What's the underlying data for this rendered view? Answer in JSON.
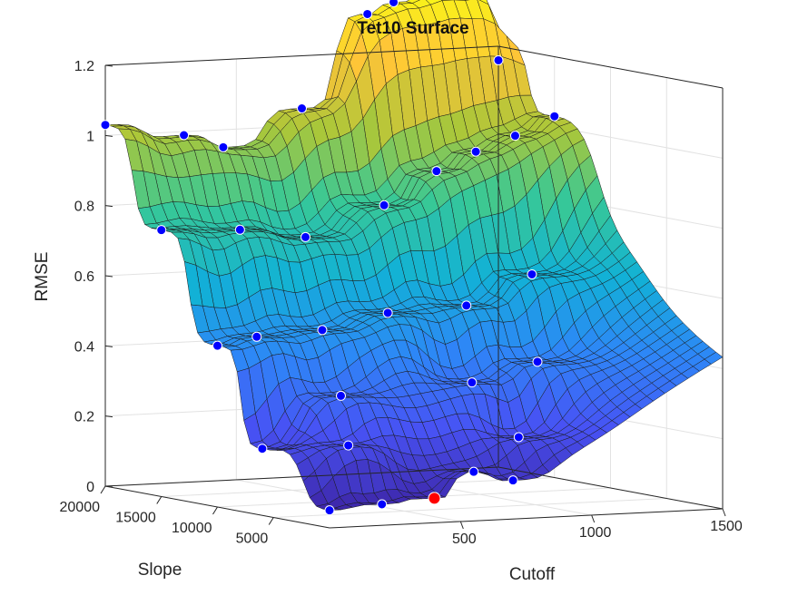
{
  "chart_data": {
    "type": "surface",
    "title": "Tet10 Surface",
    "xlabel": "Cutoff",
    "ylabel": "Slope",
    "zlabel": "RMSE",
    "x_ticks": [
      "500",
      "1000",
      "1500"
    ],
    "y_ticks": [
      "20000",
      "15000",
      "10000",
      "5000"
    ],
    "z_ticks": [
      "0",
      "0.2",
      "0.4",
      "0.6",
      "0.8",
      "1",
      "1.2"
    ],
    "xlim": [
      0,
      1500
    ],
    "ylim": [
      0,
      20000
    ],
    "zlim": [
      0,
      1.2
    ],
    "grid": true,
    "colormap": "parula",
    "surface_color": "#3fb8a6",
    "point_color": "#0000ff",
    "best_point_color": "#ff0000",
    "points": [
      {
        "x": 0,
        "y": 20000,
        "z": 1.03
      },
      {
        "x": 300,
        "y": 20000,
        "z": 0.99
      },
      {
        "x": 450,
        "y": 20000,
        "z": 0.95
      },
      {
        "x": 750,
        "y": 20000,
        "z": 1.05
      },
      {
        "x": 1000,
        "y": 20000,
        "z": 1.31
      },
      {
        "x": 1100,
        "y": 20000,
        "z": 1.34
      },
      {
        "x": 1250,
        "y": 20000,
        "z": 1.36
      },
      {
        "x": 1400,
        "y": 20000,
        "z": 1.38
      },
      {
        "x": 1500,
        "y": 20000,
        "z": 1.16
      },
      {
        "x": 0,
        "y": 15000,
        "z": 0.76
      },
      {
        "x": 300,
        "y": 15000,
        "z": 0.75
      },
      {
        "x": 550,
        "y": 15000,
        "z": 0.72
      },
      {
        "x": 850,
        "y": 15000,
        "z": 0.8
      },
      {
        "x": 1050,
        "y": 15000,
        "z": 0.89
      },
      {
        "x": 1200,
        "y": 15000,
        "z": 0.94
      },
      {
        "x": 1350,
        "y": 15000,
        "z": 0.98
      },
      {
        "x": 1500,
        "y": 15000,
        "z": 1.03
      },
      {
        "x": 0,
        "y": 10000,
        "z": 0.46
      },
      {
        "x": 150,
        "y": 10000,
        "z": 0.48
      },
      {
        "x": 400,
        "y": 10000,
        "z": 0.49
      },
      {
        "x": 650,
        "y": 10000,
        "z": 0.53
      },
      {
        "x": 950,
        "y": 10000,
        "z": 0.54
      },
      {
        "x": 1200,
        "y": 10000,
        "z": 0.62
      },
      {
        "x": 0,
        "y": 6000,
        "z": 0.19
      },
      {
        "x": 300,
        "y": 6000,
        "z": 0.33
      },
      {
        "x": 800,
        "y": 6000,
        "z": 0.35
      },
      {
        "x": 1050,
        "y": 6000,
        "z": 0.4
      },
      {
        "x": 200,
        "y": 3000,
        "z": 0.21
      },
      {
        "x": 850,
        "y": 3000,
        "z": 0.21
      },
      {
        "x": 0,
        "y": 0,
        "z": 0.05
      },
      {
        "x": 200,
        "y": 0,
        "z": 0.06
      },
      {
        "x": 550,
        "y": 0,
        "z": 0.14
      },
      {
        "x": 700,
        "y": 0,
        "z": 0.11
      }
    ],
    "best_point": {
      "x": 400,
      "y": 0,
      "z": 0.07
    }
  }
}
